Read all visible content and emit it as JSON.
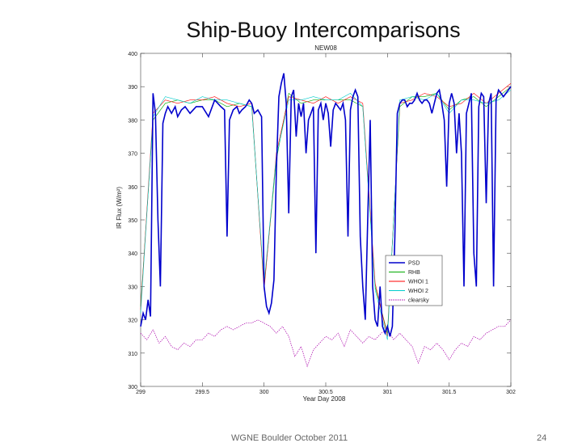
{
  "slide": {
    "title": "Ship-Buoy Intercomparisons",
    "footer": "WGNE Boulder October 2011",
    "page_number": "24"
  },
  "chart_data": {
    "type": "line",
    "title": "NEW08",
    "xlabel": "Year Day 2008",
    "ylabel": "IR Flux (W/m²)",
    "xlim": [
      299,
      302
    ],
    "ylim": [
      300,
      400
    ],
    "x_ticks": [
      "299",
      "299.5",
      "300",
      "300.5",
      "301",
      "301.5",
      "302"
    ],
    "y_ticks": [
      "300",
      "310",
      "320",
      "330",
      "340",
      "350",
      "360",
      "370",
      "380",
      "390",
      "400"
    ],
    "legend_position": "lower-right",
    "series": [
      {
        "name": "PSD",
        "color": "#0000cc",
        "x": [
          299.0,
          299.02,
          299.04,
          299.06,
          299.08,
          299.1,
          299.12,
          299.14,
          299.16,
          299.18,
          299.2,
          299.22,
          299.25,
          299.28,
          299.3,
          299.33,
          299.36,
          299.4,
          299.45,
          299.5,
          299.55,
          299.6,
          299.65,
          299.68,
          299.7,
          299.72,
          299.75,
          299.78,
          299.8,
          299.82,
          299.85,
          299.88,
          299.9,
          299.92,
          299.95,
          299.98,
          300.0,
          300.02,
          300.04,
          300.06,
          300.08,
          300.1,
          300.12,
          300.14,
          300.16,
          300.18,
          300.2,
          300.22,
          300.24,
          300.26,
          300.28,
          300.3,
          300.32,
          300.34,
          300.36,
          300.38,
          300.4,
          300.42,
          300.44,
          300.46,
          300.48,
          300.5,
          300.52,
          300.54,
          300.56,
          300.58,
          300.6,
          300.62,
          300.64,
          300.66,
          300.68,
          300.7,
          300.72,
          300.74,
          300.76,
          300.78,
          300.8,
          300.82,
          300.84,
          300.86,
          300.88,
          300.9,
          300.92,
          300.94,
          300.96,
          300.98,
          301.0,
          301.02,
          301.04,
          301.06,
          301.08,
          301.1,
          301.12,
          301.14,
          301.16,
          301.18,
          301.2,
          301.22,
          301.24,
          301.26,
          301.28,
          301.3,
          301.32,
          301.34,
          301.36,
          301.38,
          301.4,
          301.42,
          301.44,
          301.46,
          301.48,
          301.5,
          301.52,
          301.54,
          301.56,
          301.58,
          301.6,
          301.62,
          301.64,
          301.66,
          301.68,
          301.7,
          301.72,
          301.74,
          301.76,
          301.78,
          301.8,
          301.82,
          301.84,
          301.86,
          301.88,
          301.9,
          301.92,
          301.94,
          301.96,
          301.98,
          302.0
        ],
        "values": [
          318,
          322,
          320,
          326,
          321,
          388,
          382,
          350,
          330,
          379,
          382,
          384,
          382,
          384,
          381,
          383,
          384,
          382,
          384,
          384,
          381,
          386,
          384,
          383,
          345,
          380,
          383,
          384,
          382,
          383,
          384,
          386,
          385,
          382,
          383,
          381,
          330,
          324,
          322,
          325,
          332,
          365,
          387,
          391,
          394,
          385,
          352,
          387,
          389,
          375,
          385,
          381,
          385,
          370,
          380,
          382,
          384,
          340,
          383,
          385,
          380,
          385,
          382,
          372,
          383,
          385,
          384,
          383,
          385,
          380,
          345,
          383,
          387,
          389,
          387,
          345,
          330,
          320,
          350,
          380,
          330,
          320,
          318,
          330,
          318,
          316,
          318,
          315,
          318,
          345,
          382,
          385,
          386,
          386,
          384,
          385,
          385,
          386,
          388,
          386,
          385,
          386,
          386,
          385,
          382,
          385,
          388,
          389,
          385,
          380,
          360,
          385,
          388,
          385,
          370,
          382,
          370,
          330,
          382,
          385,
          388,
          340,
          330,
          384,
          388,
          387,
          355,
          385,
          388,
          330,
          386,
          389,
          388,
          387,
          388,
          389,
          390
        ]
      },
      {
        "name": "RHB",
        "color": "#00aa00",
        "x": [
          299.0,
          299.1,
          299.2,
          299.3,
          299.4,
          299.5,
          299.6,
          299.7,
          299.8,
          299.9,
          300.0,
          300.1,
          300.2,
          300.3,
          300.4,
          300.5,
          300.6,
          300.7,
          300.8,
          300.9,
          301.0,
          301.1,
          301.2,
          301.3,
          301.4,
          301.5,
          301.6,
          301.7,
          301.8,
          301.9,
          302.0
        ],
        "values": [
          324,
          380,
          385,
          386,
          385,
          386,
          386,
          384,
          385,
          384,
          330,
          368,
          388,
          385,
          386,
          386,
          386,
          386,
          384,
          330,
          316,
          384,
          387,
          387,
          388,
          383,
          386,
          387,
          384,
          387,
          390
        ]
      },
      {
        "name": "WHOI 1",
        "color": "#ff0000",
        "x": [
          299.0,
          299.1,
          299.2,
          299.3,
          299.4,
          299.5,
          299.6,
          299.7,
          299.8,
          299.9,
          300.0,
          300.1,
          300.2,
          300.3,
          300.4,
          300.5,
          300.6,
          300.7,
          300.8,
          300.9,
          301.0,
          301.1,
          301.2,
          301.3,
          301.4,
          301.5,
          301.6,
          301.7,
          301.8,
          301.9,
          302.0
        ],
        "values": [
          323,
          382,
          386,
          385,
          386,
          386,
          387,
          385,
          384,
          385,
          329,
          370,
          387,
          386,
          385,
          387,
          385,
          387,
          385,
          331,
          315,
          385,
          386,
          388,
          387,
          384,
          385,
          388,
          385,
          388,
          391
        ]
      },
      {
        "name": "WHOI 2",
        "color": "#00cccc",
        "x": [
          299.0,
          299.1,
          299.2,
          299.3,
          299.4,
          299.5,
          299.6,
          299.7,
          299.8,
          299.9,
          300.0,
          300.1,
          300.2,
          300.3,
          300.4,
          300.5,
          300.6,
          300.7,
          300.8,
          300.9,
          301.0,
          301.1,
          301.2,
          301.3,
          301.4,
          301.5,
          301.6,
          301.7,
          301.8,
          301.9,
          302.0
        ],
        "values": [
          322,
          381,
          387,
          386,
          385,
          387,
          386,
          386,
          385,
          384,
          331,
          369,
          386,
          386,
          387,
          386,
          386,
          388,
          384,
          329,
          314,
          386,
          387,
          386,
          388,
          382,
          386,
          386,
          385,
          386,
          389
        ]
      },
      {
        "name": "clearsky",
        "color": "#aa00aa",
        "x": [
          299.0,
          299.05,
          299.1,
          299.15,
          299.2,
          299.25,
          299.3,
          299.35,
          299.4,
          299.45,
          299.5,
          299.55,
          299.6,
          299.65,
          299.7,
          299.75,
          299.8,
          299.85,
          299.9,
          299.95,
          300.0,
          300.05,
          300.1,
          300.15,
          300.2,
          300.25,
          300.3,
          300.35,
          300.4,
          300.45,
          300.5,
          300.55,
          300.6,
          300.65,
          300.7,
          300.75,
          300.8,
          300.85,
          300.9,
          300.95,
          301.0,
          301.05,
          301.1,
          301.15,
          301.2,
          301.25,
          301.3,
          301.35,
          301.4,
          301.45,
          301.5,
          301.55,
          301.6,
          301.65,
          301.7,
          301.75,
          301.8,
          301.85,
          301.9,
          301.95,
          302.0
        ],
        "values": [
          316,
          314,
          317,
          313,
          315,
          312,
          311,
          313,
          312,
          314,
          314,
          316,
          315,
          317,
          318,
          317,
          318,
          319,
          319,
          320,
          319,
          318,
          316,
          318,
          315,
          309,
          312,
          306,
          311,
          313,
          315,
          314,
          316,
          312,
          317,
          315,
          313,
          315,
          314,
          316,
          317,
          314,
          316,
          314,
          312,
          307,
          312,
          311,
          313,
          311,
          308,
          311,
          313,
          312,
          315,
          314,
          316,
          317,
          318,
          318,
          320
        ]
      }
    ]
  }
}
